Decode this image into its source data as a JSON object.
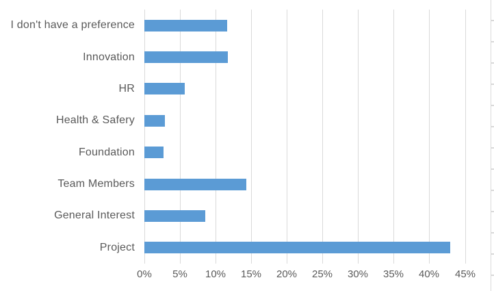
{
  "chart_data": {
    "type": "bar",
    "orientation": "horizontal",
    "title": "",
    "xlabel": "",
    "ylabel": "",
    "categories": [
      "I don't have a preference",
      "Innovation",
      "HR",
      "Health & Safery",
      "Foundation",
      "Team Members",
      "General Interest",
      "Project"
    ],
    "values": [
      11.6,
      11.7,
      5.7,
      2.9,
      2.7,
      14.3,
      8.5,
      42.9
    ],
    "value_unit": "%",
    "xlim": [
      0,
      45
    ],
    "x_ticks": [
      0,
      5,
      10,
      15,
      20,
      25,
      30,
      35,
      40,
      45
    ],
    "x_tick_labels": [
      "0%",
      "5%",
      "10%",
      "15%",
      "20%",
      "25%",
      "30%",
      "35%",
      "40%",
      "45%"
    ],
    "grid": "vertical-only",
    "legend": "none",
    "colors": {
      "bar": "#5b9bd5",
      "gridline": "#d9d9d9",
      "axis_text": "#595959",
      "background": "#ffffff"
    }
  }
}
